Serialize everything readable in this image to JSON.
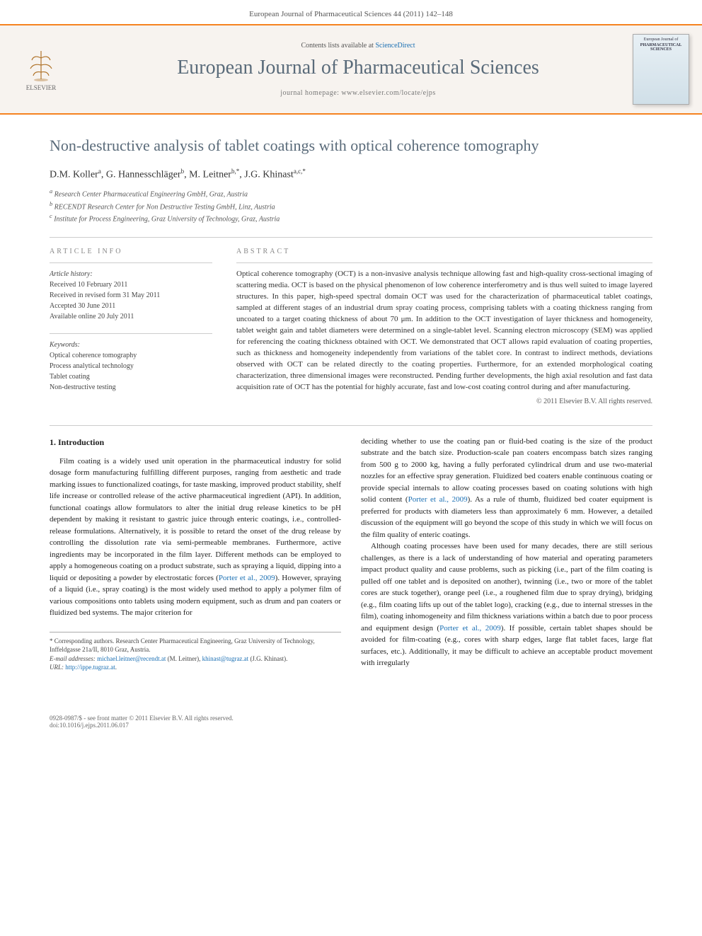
{
  "page_header": "European Journal of Pharmaceutical Sciences 44 (2011) 142–148",
  "masthead": {
    "contents_prefix": "Contents lists available at ",
    "contents_link": "ScienceDirect",
    "publisher_name": "ELSEVIER",
    "journal_name": "European Journal of Pharmaceutical Sciences",
    "homepage_label": "journal homepage: www.elsevier.com/locate/ejps",
    "cover_label_top": "European Journal of",
    "cover_label_main": "PHARMACEUTICAL SCIENCES"
  },
  "article": {
    "title": "Non-destructive analysis of tablet coatings with optical coherence tomography",
    "authors_html": "D.M. Koller<sup>a</sup>, G. Hannesschläger<sup>b</sup>, M. Leitner<sup>b,*</sup>, J.G. Khinast<sup>a,c,*</sup>",
    "affiliations": {
      "a": "Research Center Pharmaceutical Engineering GmbH, Graz, Austria",
      "b": "RECENDT Research Center for Non Destructive Testing GmbH, Linz, Austria",
      "c": "Institute for Process Engineering, Graz University of Technology, Graz, Austria"
    }
  },
  "info": {
    "label": "ARTICLE INFO",
    "history_title": "Article history:",
    "received": "Received 10 February 2011",
    "revised": "Received in revised form 31 May 2011",
    "accepted": "Accepted 30 June 2011",
    "online": "Available online 20 July 2011",
    "keywords_title": "Keywords:",
    "keywords": [
      "Optical coherence tomography",
      "Process analytical technology",
      "Tablet coating",
      "Non-destructive testing"
    ]
  },
  "abstract": {
    "label": "ABSTRACT",
    "text": "Optical coherence tomography (OCT) is a non-invasive analysis technique allowing fast and high-quality cross-sectional imaging of scattering media. OCT is based on the physical phenomenon of low coherence interferometry and is thus well suited to image layered structures. In this paper, high-speed spectral domain OCT was used for the characterization of pharmaceutical tablet coatings, sampled at different stages of an industrial drum spray coating process, comprising tablets with a coating thickness ranging from uncoated to a target coating thickness of about 70 μm. In addition to the OCT investigation of layer thickness and homogeneity, tablet weight gain and tablet diameters were determined on a single-tablet level. Scanning electron microscopy (SEM) was applied for referencing the coating thickness obtained with OCT. We demonstrated that OCT allows rapid evaluation of coating properties, such as thickness and homogeneity independently from variations of the tablet core. In contrast to indirect methods, deviations observed with OCT can be related directly to the coating properties. Furthermore, for an extended morphological coating characterization, three dimensional images were reconstructed. Pending further developments, the high axial resolution and fast data acquisition rate of OCT has the potential for highly accurate, fast and low-cost coating control during and after manufacturing.",
    "copyright": "© 2011 Elsevier B.V. All rights reserved."
  },
  "body": {
    "section_number": "1.",
    "section_title": "Introduction",
    "col1_p1": "Film coating is a widely used unit operation in the pharmaceutical industry for solid dosage form manufacturing fulfilling different purposes, ranging from aesthetic and trade marking issues to functionalized coatings, for taste masking, improved product stability, shelf life increase or controlled release of the active pharmaceutical ingredient (API). In addition, functional coatings allow formulators to alter the initial drug release kinetics to be pH dependent by making it resistant to gastric juice through enteric coatings, i.e., controlled-release formulations. Alternatively, it is possible to retard the onset of the drug release by controlling the dissolution rate via semi-permeable membranes. Furthermore, active ingredients may be incorporated in the film layer. Different methods can be employed to apply a homogeneous coating on a product substrate, such as spraying a liquid, dipping into a liquid or depositing a powder by electrostatic forces (",
    "col1_ref1": "Porter et al., 2009",
    "col1_p1b": "). However, spraying of a liquid (i.e., spray coating) is the most widely used method to apply a polymer film of various compositions onto tablets using modern equipment, such as drum and pan coaters or fluidized bed systems. The major criterion for",
    "col2_p1": "deciding whether to use the coating pan or fluid-bed coating is the size of the product substrate and the batch size. Production-scale pan coaters encompass batch sizes ranging from 500 g to 2000 kg, having a fully perforated cylindrical drum and use two-material nozzles for an effective spray generation. Fluidized bed coaters enable continuous coating or provide special internals to allow coating processes based on coating solutions with high solid content (",
    "col2_ref1": "Porter et al., 2009",
    "col2_p1b": "). As a rule of thumb, fluidized bed coater equipment is preferred for products with diameters less than approximately 6 mm. However, a detailed discussion of the equipment will go beyond the scope of this study in which we will focus on the film quality of enteric coatings.",
    "col2_p2": "Although coating processes have been used for many decades, there are still serious challenges, as there is a lack of understanding of how material and operating parameters impact product quality and cause problems, such as picking (i.e., part of the film coating is pulled off one tablet and is deposited on another), twinning (i.e., two or more of the tablet cores are stuck together), orange peel (i.e., a roughened film due to spray drying), bridging (e.g., film coating lifts up out of the tablet logo), cracking (e.g., due to internal stresses in the film), coating inhomogeneity and film thickness variations within a batch due to poor process and equipment design (",
    "col2_ref2": "Porter et al., 2009",
    "col2_p2b": "). If possible, certain tablet shapes should be avoided for film-coating (e.g., cores with sharp edges, large flat tablet faces, large flat surfaces, etc.). Additionally, it may be difficult to achieve an acceptable product movement with irregularly"
  },
  "footnotes": {
    "corresponding": "* Corresponding authors. Research Center Pharmaceutical Engineering, Graz University of Technology, Inffeldgasse 21a/II, 8010 Graz, Austria.",
    "email_label": "E-mail addresses:",
    "email1": "michael.leitner@recendt.at",
    "email1_who": " (M. Leitner), ",
    "email2": "khinast@tugraz.at",
    "email2_who": " (J.G. Khinast).",
    "url_label": "URL:",
    "url": "http://ippe.tugraz.at"
  },
  "footer": {
    "left1": "0928-0987/$ - see front matter © 2011 Elsevier B.V. All rights reserved.",
    "left2": "doi:10.1016/j.ejps.2011.06.017"
  },
  "colors": {
    "accent_orange": "#f5821f",
    "title_gray": "#5a6b7a",
    "link_blue": "#1a6fb3",
    "bg_masthead": "#f7f3ef"
  }
}
